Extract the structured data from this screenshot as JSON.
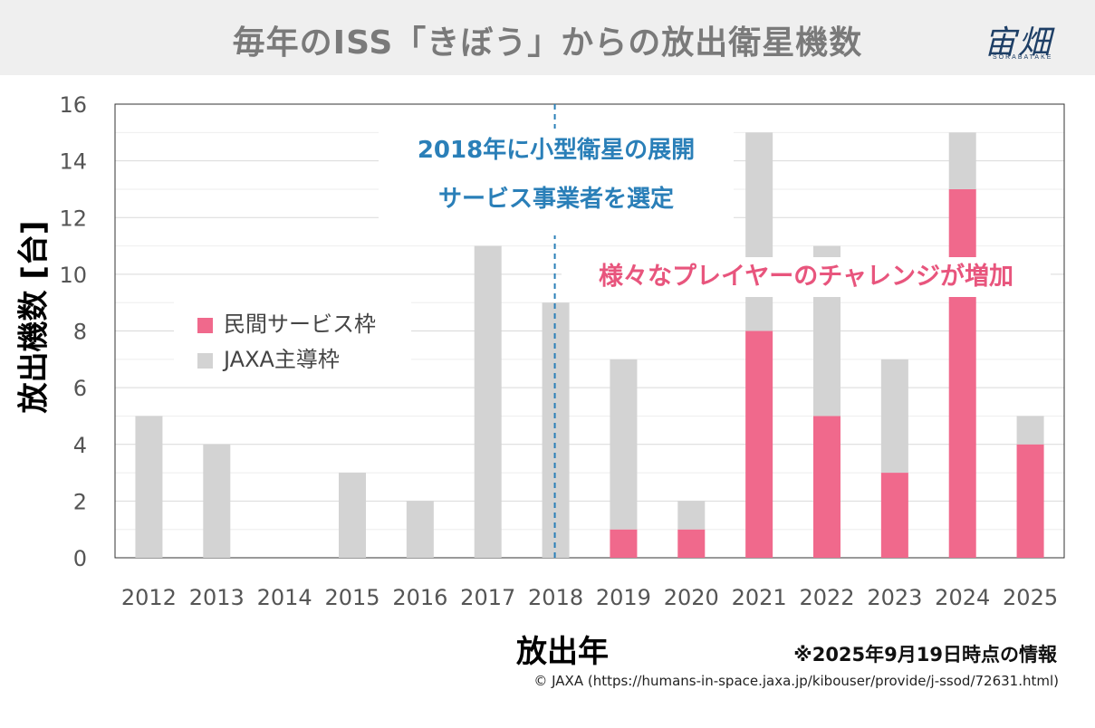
{
  "header": {
    "title": "毎年のISS「きぼう」からの放出衛星機数",
    "logo_text": "宙畑",
    "logo_sub": "SORABATAKE"
  },
  "colors": {
    "private": "#f0698c",
    "jaxa": "#d3d3d3",
    "annotation_blue": "#2a7fb8",
    "annotation_pink": "#e8557d"
  },
  "annotations": {
    "blue_line1": "2018年に小型衛星の展開",
    "blue_line2": "サービス事業者を選定",
    "pink": "様々なプレイヤーのチャレンジが増加"
  },
  "note": "※2025年9月19日時点の情報",
  "source": "© JAXA (https://humans-in-space.jaxa.jp/kibouser/provide/j-ssod/72631.html)",
  "chart_data": {
    "type": "bar",
    "stacked": true,
    "title": "毎年のISS「きぼう」からの放出衛星機数",
    "xlabel": "放出年",
    "ylabel": "放出機数 [台]",
    "categories": [
      "2012",
      "2013",
      "2014",
      "2015",
      "2016",
      "2017",
      "2018",
      "2019",
      "2020",
      "2021",
      "2022",
      "2023",
      "2024",
      "2025"
    ],
    "series": [
      {
        "name": "民間サービス枠",
        "color": "#f0698c",
        "values": [
          0,
          0,
          0,
          0,
          0,
          0,
          0,
          1,
          1,
          8,
          5,
          3,
          13,
          4
        ]
      },
      {
        "name": "JAXA主導枠",
        "color": "#d3d3d3",
        "values": [
          5,
          4,
          0,
          3,
          2,
          11,
          9,
          6,
          1,
          7,
          6,
          4,
          2,
          1
        ]
      }
    ],
    "ylim": [
      0,
      16
    ],
    "yticks": [
      0,
      2,
      4,
      6,
      8,
      10,
      12,
      14,
      16
    ],
    "grid": true,
    "legend_position": "middle-left",
    "marker_line_category": "2018"
  }
}
